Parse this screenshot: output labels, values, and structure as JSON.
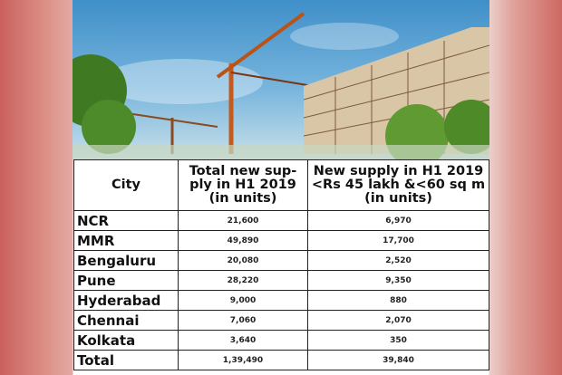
{
  "image": {
    "description_icon": "construction-photo"
  },
  "table": {
    "headers": [
      "City",
      "Total new sup-ply in H1 2019 (in units)",
      "New supply in H1 2019 <Rs 45 lakh &<60 sq m (in units)"
    ],
    "rows": [
      {
        "city": "NCR",
        "total": "21,600",
        "affordable": "6,970"
      },
      {
        "city": "MMR",
        "total": "49,890",
        "affordable": "17,700"
      },
      {
        "city": "Bengaluru",
        "total": "20,080",
        "affordable": "2,520"
      },
      {
        "city": "Pune",
        "total": "28,220",
        "affordable": "9,350"
      },
      {
        "city": "Hyderabad",
        "total": "9,000",
        "affordable": "880"
      },
      {
        "city": "Chennai",
        "total": "7,060",
        "affordable": "2,070"
      },
      {
        "city": "Kolkata",
        "total": "3,640",
        "affordable": "350"
      },
      {
        "city": "Total",
        "total": "1,39,490",
        "affordable": "39,840"
      }
    ]
  }
}
